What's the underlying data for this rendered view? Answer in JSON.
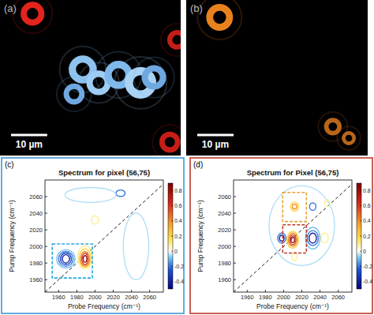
{
  "chart_data": [
    {
      "type": "image",
      "label": "(a)",
      "xlim": [
        0,
        50
      ],
      "ylim": [
        0,
        43
      ],
      "tick_labels": false,
      "scale_bar": {
        "value": 10,
        "label": "10 µm"
      },
      "spots": [
        {
          "x": 9.0,
          "y": 3.8,
          "r": 3.4,
          "color": "#e3231c"
        },
        {
          "x": 49.0,
          "y": 11.0,
          "r": 2.8,
          "color": "#c81d17"
        },
        {
          "x": 22.9,
          "y": 19.2,
          "r": 4.0,
          "color": "#8ec3ef"
        },
        {
          "x": 20.5,
          "y": 26.0,
          "r": 3.0,
          "color": "#6fa8e0"
        },
        {
          "x": 27.3,
          "y": 22.9,
          "r": 3.5,
          "color": "#9fcdf3"
        },
        {
          "x": 32.8,
          "y": 20.7,
          "r": 4.0,
          "color": "#7fb8ea"
        },
        {
          "x": 38.9,
          "y": 22.9,
          "r": 4.5,
          "color": "#a9d3f5"
        },
        {
          "x": 42.6,
          "y": 21.4,
          "r": 3.5,
          "color": "#6fa8e0"
        },
        {
          "x": 47.0,
          "y": 39.3,
          "r": 3.0,
          "color": "#c81d17"
        }
      ]
    },
    {
      "type": "image",
      "label": "(b)",
      "xlim": [
        0,
        50
      ],
      "ylim": [
        0,
        43
      ],
      "tick_labels": false,
      "scale_bar": {
        "value": 10,
        "label": "10 µm"
      },
      "spots": [
        {
          "x": 9.2,
          "y": 4.8,
          "r": 3.8,
          "color": "#e8821e"
        },
        {
          "x": 40.4,
          "y": 35.0,
          "r": 2.5,
          "color": "#b8661a"
        },
        {
          "x": 44.8,
          "y": 38.2,
          "r": 2.0,
          "color": "#b8661a"
        }
      ]
    },
    {
      "type": "contour",
      "label": "(c)",
      "title": "Spectrum for pixel (56,75)",
      "color": "#3b9ad9",
      "x_label": "Probe Frequency (cm⁻¹)",
      "y_label": "Pump Frequency (cm⁻¹)",
      "xlim": [
        1945,
        2075
      ],
      "ylim": [
        1945,
        2080
      ],
      "xticks": [
        1960,
        1980,
        2000,
        2020,
        2040,
        2060
      ],
      "yticks": [
        1960,
        1980,
        2000,
        2020,
        2040,
        2060
      ],
      "reference_line": {
        "x": [
          1945,
          2080
        ],
        "y": [
          1945,
          2080
        ],
        "line_style": "dashed"
      },
      "colorbar": {
        "range": [
          -0.5,
          0.9
        ],
        "ticks": [
          -0.4,
          -0.2,
          0,
          0.2,
          0.4,
          0.6,
          0.8
        ]
      },
      "contours": [
        {
          "probe": 1968,
          "pump": 1985,
          "width": 10,
          "height": 11,
          "level": -0.1
        },
        {
          "probe": 1968,
          "pump": 1985,
          "width": 8,
          "height": 9,
          "level": -0.2
        },
        {
          "probe": 1968,
          "pump": 1985,
          "width": 6,
          "height": 7,
          "level": -0.3
        },
        {
          "probe": 1968,
          "pump": 1985,
          "width": 4,
          "height": 5,
          "level": -0.4
        },
        {
          "probe": 1989,
          "pump": 1987,
          "width": 8,
          "height": 14,
          "level": 0.1
        },
        {
          "probe": 1989,
          "pump": 1986,
          "width": 6.5,
          "height": 11,
          "level": 0.2
        },
        {
          "probe": 1989,
          "pump": 1985,
          "width": 5,
          "height": 9,
          "level": 0.4
        },
        {
          "probe": 1989,
          "pump": 1985,
          "width": 3.5,
          "height": 7,
          "level": 0.6
        },
        {
          "probe": 1989,
          "pump": 1985,
          "width": 2,
          "height": 4,
          "level": 0.8
        },
        {
          "probe": 2000,
          "pump": 2032,
          "width": 4,
          "height": 5,
          "level": 0.1
        },
        {
          "probe": 2028,
          "pump": 2064,
          "width": 5,
          "height": 4,
          "level": -0.2
        },
        {
          "probe": 1995,
          "pump": 2062,
          "width": 28,
          "height": 9,
          "level": -0.05
        },
        {
          "probe": 2045,
          "pump": 2000,
          "width": 14,
          "height": 40,
          "level": -0.05
        }
      ],
      "boxes": [
        {
          "x": [
            1953,
            1997
          ],
          "y": [
            1962,
            2003
          ],
          "color": "#29a8e0",
          "line_style": "dashed"
        }
      ]
    },
    {
      "type": "contour",
      "label": "(d)",
      "title": "Spectrum for Pixel (56,75)",
      "color": "#c0392b",
      "x_label": "Probe Frequency (cm⁻¹)",
      "y_label": "Pump Frequency (cm⁻¹)",
      "xlim": [
        1945,
        2075
      ],
      "ylim": [
        1945,
        2080
      ],
      "xticks": [
        1960,
        1980,
        2000,
        2020,
        2040,
        2060
      ],
      "yticks": [
        1960,
        1980,
        2000,
        2020,
        2040,
        2060
      ],
      "reference_line": {
        "x": [
          1945,
          2080
        ],
        "y": [
          1945,
          2080
        ],
        "line_style": "dashed"
      },
      "colorbar": {
        "range": [
          -0.5,
          0.9
        ],
        "ticks": [
          -0.4,
          -0.2,
          0,
          0.2,
          0.4,
          0.6,
          0.8
        ]
      },
      "contours": [
        {
          "probe": 2020,
          "pump": 2025,
          "width": 36,
          "height": 48,
          "level": -0.05
        },
        {
          "probe": 2010,
          "pump": 2008,
          "width": 6.5,
          "height": 10,
          "level": 0.2
        },
        {
          "probe": 2010,
          "pump": 2008,
          "width": 5,
          "height": 8,
          "level": 0.4
        },
        {
          "probe": 2010,
          "pump": 2008,
          "width": 3.5,
          "height": 6,
          "level": 0.6
        },
        {
          "probe": 2010,
          "pump": 2008,
          "width": 2,
          "height": 3.5,
          "level": 0.8
        },
        {
          "probe": 1998,
          "pump": 2010,
          "width": 4.5,
          "height": 6,
          "level": -0.2
        },
        {
          "probe": 1998,
          "pump": 2010,
          "width": 2.5,
          "height": 3.5,
          "level": -0.4
        },
        {
          "probe": 2032,
          "pump": 2010,
          "width": 8,
          "height": 13,
          "level": -0.1
        },
        {
          "probe": 2032,
          "pump": 2010,
          "width": 6,
          "height": 9,
          "level": -0.2
        },
        {
          "probe": 2032,
          "pump": 2010,
          "width": 4,
          "height": 6,
          "level": -0.4
        },
        {
          "probe": 2012,
          "pump": 2048,
          "width": 4.5,
          "height": 5.5,
          "level": 0.2
        },
        {
          "probe": 2012,
          "pump": 2048,
          "width": 2.5,
          "height": 3,
          "level": 0.4
        },
        {
          "probe": 2032,
          "pump": 2048,
          "width": 3.5,
          "height": 4.5,
          "level": -0.2
        },
        {
          "probe": 2045,
          "pump": 2010,
          "width": 4,
          "height": 6,
          "level": 0.1
        },
        {
          "probe": 2012,
          "pump": 1988,
          "width": 3,
          "height": 5,
          "level": 0.1
        },
        {
          "probe": 2048,
          "pump": 2052,
          "width": 3,
          "height": 4,
          "level": 0.1
        }
      ],
      "boxes": [
        {
          "x": [
            1999,
            2025
          ],
          "y": [
            2030,
            2065
          ],
          "color": "#e8a23a",
          "line_style": "dashed"
        },
        {
          "x": [
            1999,
            2025
          ],
          "y": [
            1992,
            2026
          ],
          "color": "#c0392b",
          "line_style": "dashed"
        }
      ]
    }
  ]
}
